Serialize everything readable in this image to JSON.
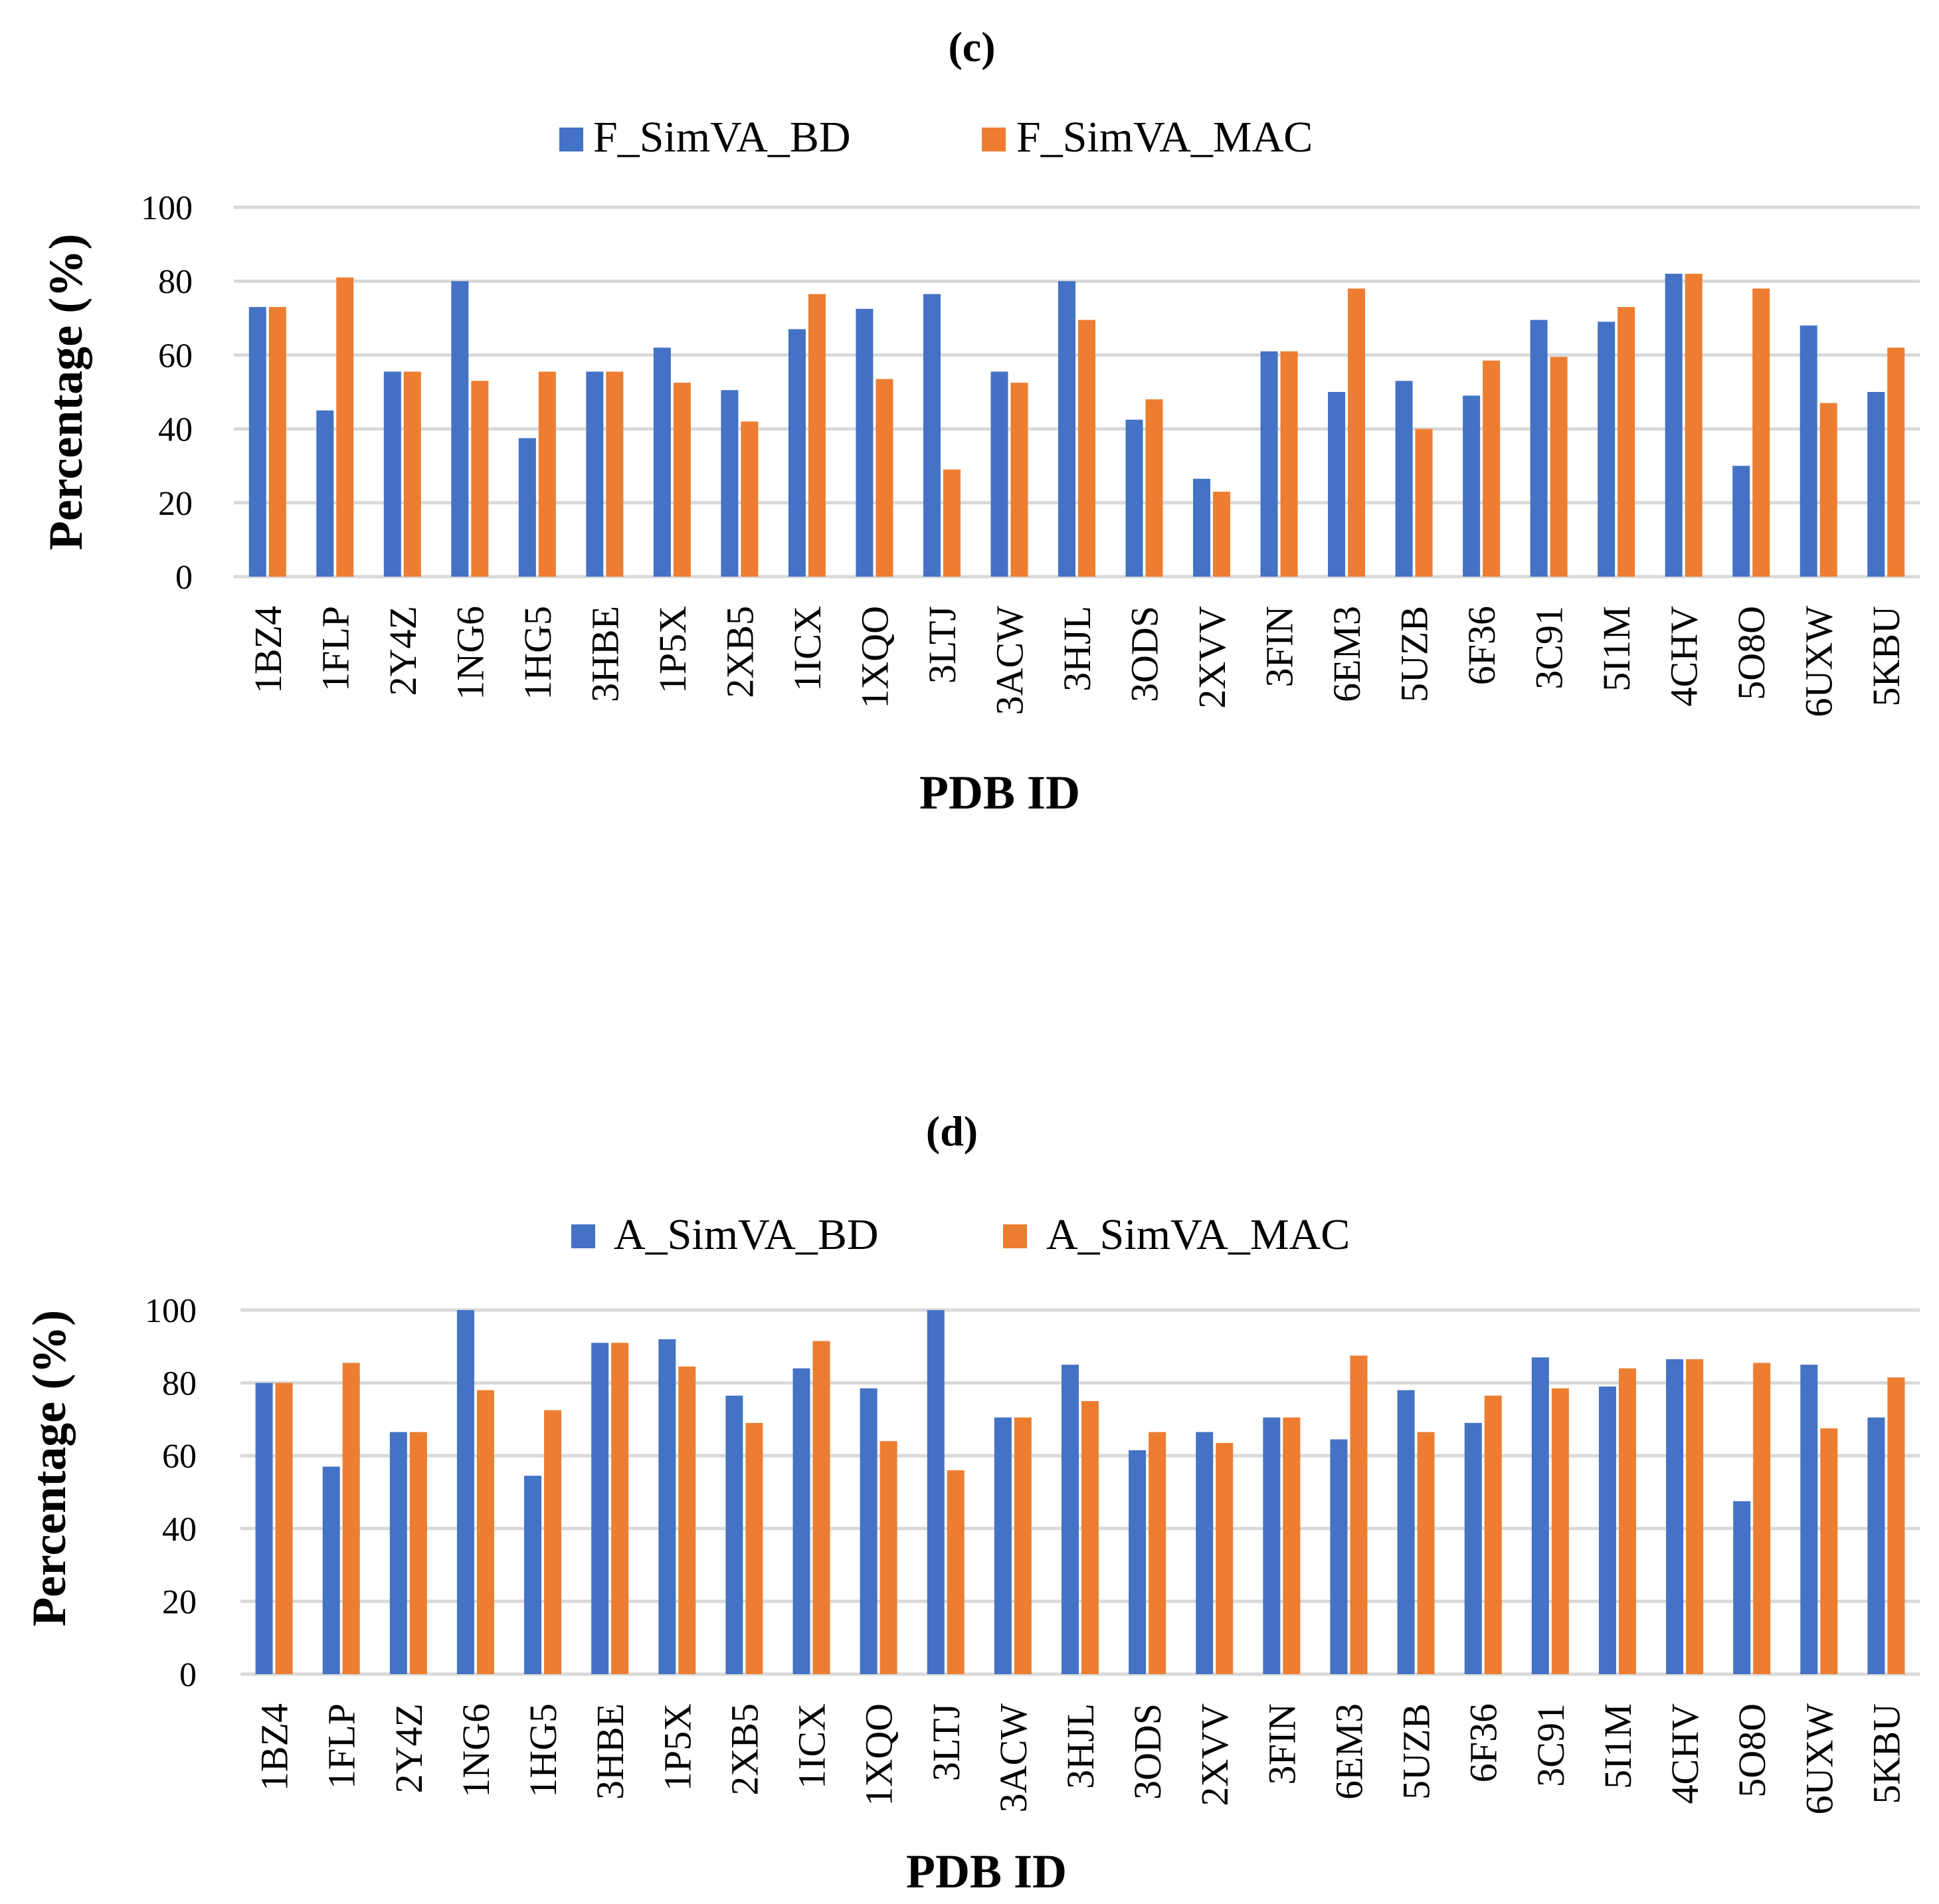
{
  "chart_data": [
    {
      "type": "bar",
      "title": "(c)",
      "xlabel": "PDB ID",
      "ylabel": "Percentage (%)",
      "ylim": [
        0,
        100
      ],
      "yticks": [
        0,
        20,
        40,
        60,
        80,
        100
      ],
      "grid": true,
      "legend_position": "top-center",
      "categories": [
        "1BZ4",
        "1FLP",
        "2Y4Z",
        "1NG6",
        "1HG5",
        "3HBE",
        "1P5X",
        "2XB5",
        "1ICX",
        "1XQO",
        "3LTJ",
        "3ACW",
        "3HJL",
        "3ODS",
        "2XVV",
        "3FIN",
        "6EM3",
        "5UZB",
        "6F36",
        "3C91",
        "5I1M",
        "4CHV",
        "5O8O",
        "6UXW",
        "5KBU"
      ],
      "series": [
        {
          "name": "F_SimVA_BD",
          "color": "#4472c4",
          "values": [
            73,
            45,
            55.5,
            80,
            37.5,
            55.5,
            62,
            50.5,
            67,
            72.5,
            76.5,
            55.5,
            80,
            42.5,
            26.5,
            61,
            50,
            53,
            49,
            69.5,
            69,
            82,
            30,
            68,
            50
          ]
        },
        {
          "name": "F_SimVA_MAC",
          "color": "#ed7d31",
          "values": [
            73,
            81,
            55.5,
            53,
            55.5,
            55.5,
            52.5,
            42,
            76.5,
            53.5,
            29,
            52.5,
            69.5,
            48,
            23,
            61,
            78,
            40,
            58.5,
            59.5,
            73,
            82,
            78,
            47,
            62
          ]
        }
      ]
    },
    {
      "type": "bar",
      "title": "(d)",
      "xlabel": "PDB ID",
      "ylabel": "Percentage (%)",
      "ylim": [
        0,
        100
      ],
      "yticks": [
        0,
        20,
        40,
        60,
        80,
        100
      ],
      "grid": true,
      "legend_position": "top-center",
      "categories": [
        "1BZ4",
        "1FLP",
        "2Y4Z",
        "1NG6",
        "1HG5",
        "3HBE",
        "1P5X",
        "2XB5",
        "1ICX",
        "1XQO",
        "3LTJ",
        "3ACW",
        "3HJL",
        "3ODS",
        "2XVV",
        "3FIN",
        "6EM3",
        "5UZB",
        "6F36",
        "3C91",
        "5I1M",
        "4CHV",
        "5O8O",
        "6UXW",
        "5KBU"
      ],
      "series": [
        {
          "name": "A_SimVA_BD",
          "color": "#4472c4",
          "values": [
            80,
            57,
            66.5,
            100,
            54.5,
            91,
            92,
            76.5,
            84,
            78.5,
            100,
            70.5,
            85,
            61.5,
            66.5,
            70.5,
            64.5,
            78,
            69,
            87,
            79,
            86.5,
            47.5,
            85,
            70.5
          ]
        },
        {
          "name": "A_SimVA_MAC",
          "color": "#ed7d31",
          "values": [
            80,
            85.5,
            66.5,
            78,
            72.5,
            91,
            84.5,
            69,
            91.5,
            64,
            56,
            70.5,
            75,
            66.5,
            63.5,
            70.5,
            87.5,
            66.5,
            76.5,
            78.5,
            84,
            86.5,
            85.5,
            67.5,
            81.5
          ]
        }
      ]
    }
  ]
}
